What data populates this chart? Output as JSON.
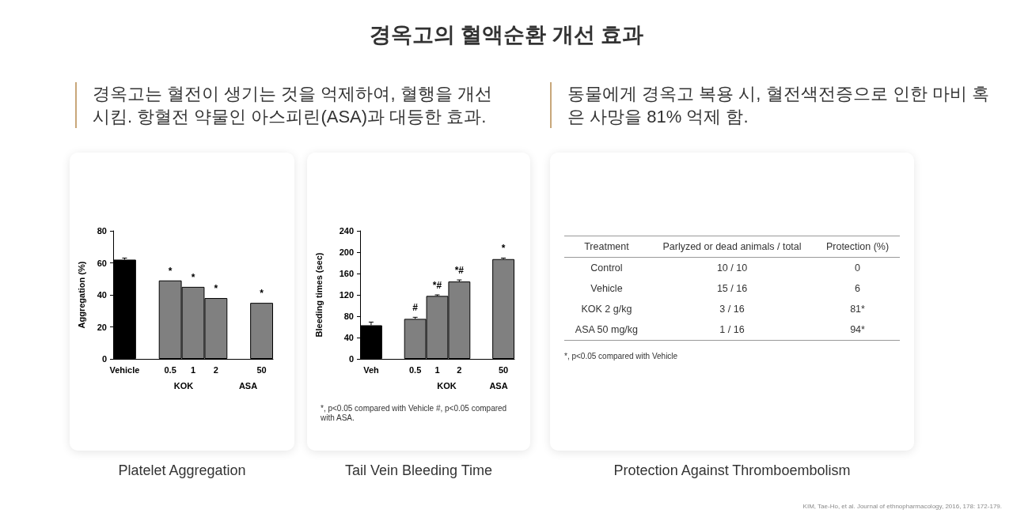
{
  "chart_data": [
    {
      "type": "bar",
      "title": "Platelet Aggregation",
      "ylabel": "Aggregation (%)",
      "categories": [
        "Vehicle",
        null,
        "0.5",
        "1",
        "2",
        null,
        "50"
      ],
      "values": [
        62,
        null,
        49,
        45,
        38,
        null,
        35
      ],
      "colors": [
        "#000000",
        "#808080",
        "#808080",
        "#808080",
        "#808080",
        "#808080",
        "#808080"
      ],
      "errors": [
        [
          62,
          63
        ],
        null,
        null,
        null,
        null,
        null,
        null
      ],
      "ylim": [
        0,
        80
      ],
      "yticks": [
        0,
        20,
        40,
        60,
        80
      ],
      "annotations": [
        "경옥고의 혈액순환 개선 효과",
        "경옥고는 혈전이 생기는 것을 억제하여, 혈행을 개선시킴. 항혈전 약물인 아스피린(ASA)과 대등한 효과.",
        {
          "text": "*",
          "x": "0.5",
          "y": 49
        },
        {
          "text": "*",
          "x": "1",
          "y": 45
        },
        {
          "text": "*",
          "x": "2",
          "y": 38
        },
        {
          "text": "*",
          "x": "50",
          "y": 35
        },
        "KOK",
        "ASA"
      ]
    },
    {
      "type": "bar",
      "title": "Tail Vein Bleeding Time",
      "ylabel": "Bleeding times (sec)",
      "categories": [
        "Veh",
        null,
        "0.5",
        "1",
        "2",
        null,
        "50"
      ],
      "values": [
        63,
        null,
        75,
        118,
        145,
        null,
        187
      ],
      "colors": [
        "#000000",
        "#808080",
        "#808080",
        "#808080",
        "#808080",
        "#808080",
        "#808080"
      ],
      "errors": [
        [
          63,
          69
        ],
        null,
        [
          75,
          78
        ],
        [
          118,
          120
        ],
        [
          145,
          148
        ],
        null,
        [
          187,
          189
        ]
      ],
      "ylim": [
        0,
        240
      ],
      "yticks": [
        0,
        40,
        80,
        120,
        160,
        200,
        240
      ],
      "annotations": [
        "*, p<0.05 compared with Vehicle #, p<0.05 compared with ASA.",
        {
          "text": "#",
          "x": "0.5",
          "y": 75
        },
        {
          "text": "*#",
          "x": "1",
          "y": 118
        },
        {
          "text": "*#",
          "x": "2",
          "y": 145
        },
        {
          "text": "*",
          "x": "50",
          "y": 187
        },
        "KOK",
        "ASA"
      ]
    },
    {
      "type": "other",
      "title": "Protection Against Thromboembolism",
      "subtitle": "동물에게 경옥고 복용 시, 혈전색전증으로 인한 마비 혹은 사망을 81% 억제 함.",
      "annotations": [
        "Treatment",
        "Parlyzed or dead animals / total",
        "Protection (%)",
        "Control",
        "10 / 10",
        "0",
        "Vehicle",
        "15 / 16",
        "6",
        "KOK 2 g/kg",
        "3 / 16",
        "81*",
        "ASA 50 mg/kg",
        "1 / 16",
        "94*",
        "*, p<0.05 compared with Vehicle",
        "KIM, Tae-Ho, et al. Journal of ethnopharmacology, 2016, 178: 172-179."
      ]
    }
  ]
}
